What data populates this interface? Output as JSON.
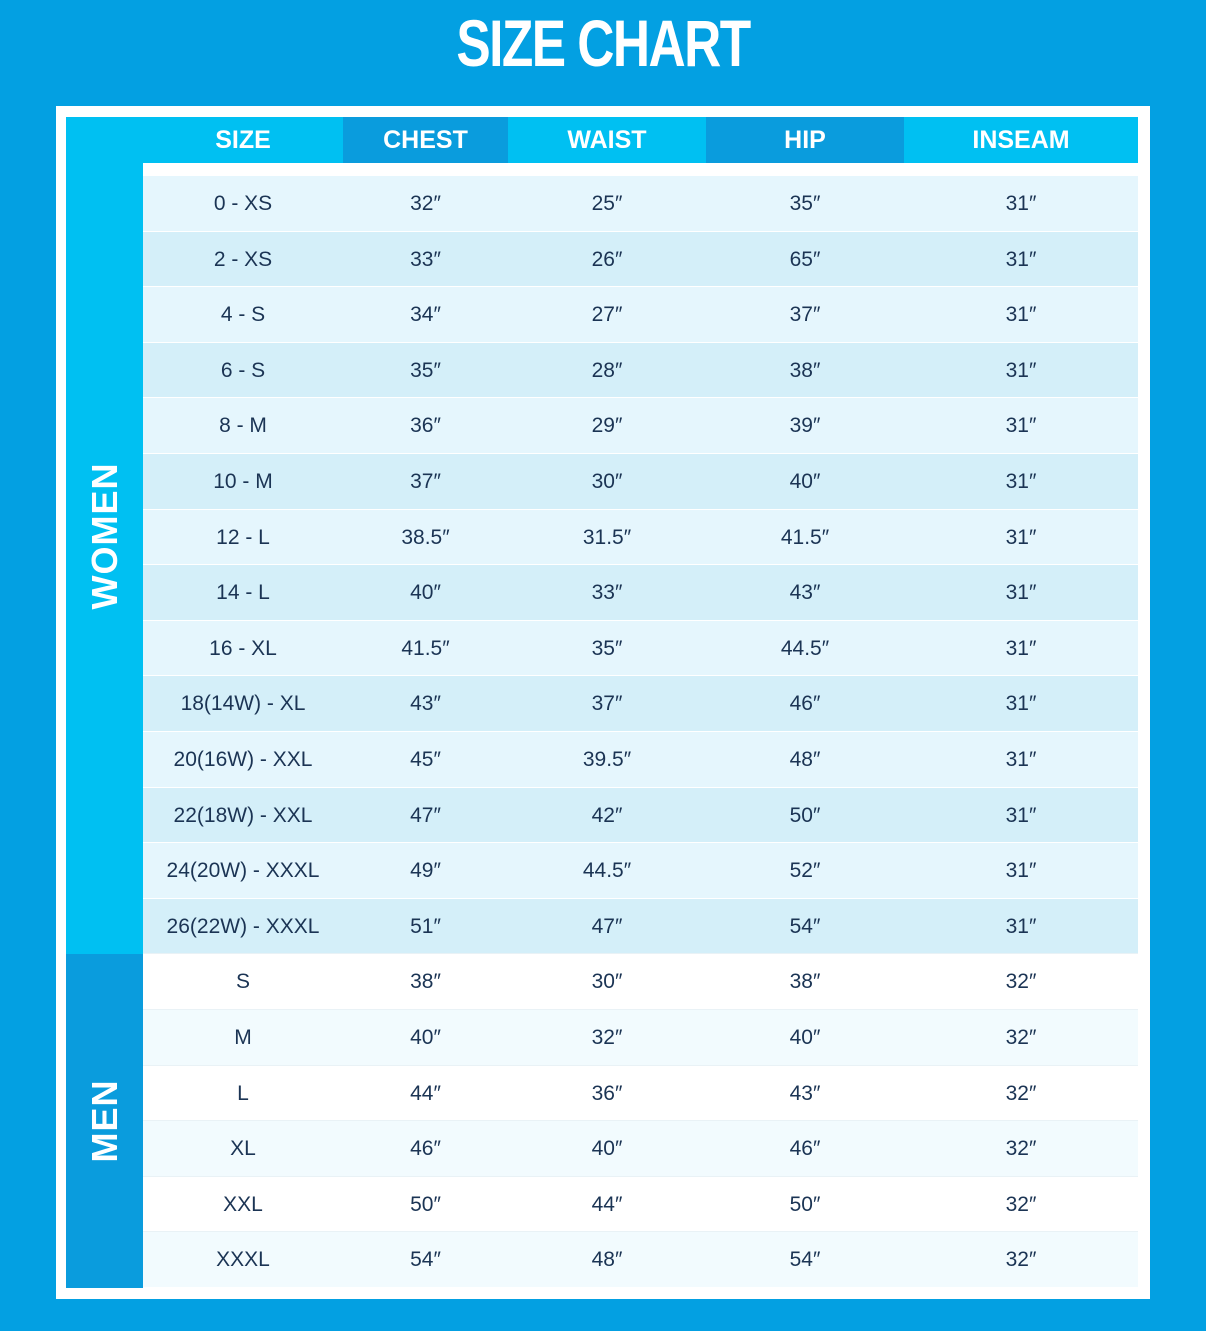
{
  "title": "SIZE CHART",
  "headers": [
    "SIZE",
    "CHEST",
    "WAIST",
    "HIP",
    "INSEAM"
  ],
  "groups": {
    "women": {
      "label": "WOMEN",
      "rows": [
        [
          "0 - XS",
          "32″",
          "25″",
          "35″",
          "31″"
        ],
        [
          "2 - XS",
          "33″",
          "26″",
          "65″",
          "31″"
        ],
        [
          "4 - S",
          "34″",
          "27″",
          "37″",
          "31″"
        ],
        [
          "6 - S",
          "35″",
          "28″",
          "38″",
          "31″"
        ],
        [
          "8 - M",
          "36″",
          "29″",
          "39″",
          "31″"
        ],
        [
          "10 - M",
          "37″",
          "30″",
          "40″",
          "31″"
        ],
        [
          "12 - L",
          "38.5″",
          "31.5″",
          "41.5″",
          "31″"
        ],
        [
          "14 - L",
          "40″",
          "33″",
          "43″",
          "31″"
        ],
        [
          "16 - XL",
          "41.5″",
          "35″",
          "44.5″",
          "31″"
        ],
        [
          "18(14W) - XL",
          "43″",
          "37″",
          "46″",
          "31″"
        ],
        [
          "20(16W) - XXL",
          "45″",
          "39.5″",
          "48″",
          "31″"
        ],
        [
          "22(18W) - XXL",
          "47″",
          "42″",
          "50″",
          "31″"
        ],
        [
          "24(20W) - XXXL",
          "49″",
          "44.5″",
          "52″",
          "31″"
        ],
        [
          "26(22W) - XXXL",
          "51″",
          "47″",
          "54″",
          "31″"
        ]
      ]
    },
    "men": {
      "label": "MEN",
      "rows": [
        [
          "S",
          "38″",
          "30″",
          "38″",
          "32″"
        ],
        [
          "M",
          "40″",
          "32″",
          "40″",
          "32″"
        ],
        [
          "L",
          "44″",
          "36″",
          "43″",
          "32″"
        ],
        [
          "XL",
          "46″",
          "40″",
          "46″",
          "32″"
        ],
        [
          "XXL",
          "50″",
          "44″",
          "50″",
          "32″"
        ],
        [
          "XXXL",
          "54″",
          "48″",
          "54″",
          "32″"
        ]
      ]
    }
  },
  "colors": {
    "background": "#03a0e2",
    "header_light": "#00c0f2",
    "header_dark": "#0a9cdd",
    "text": "#1b3454"
  }
}
